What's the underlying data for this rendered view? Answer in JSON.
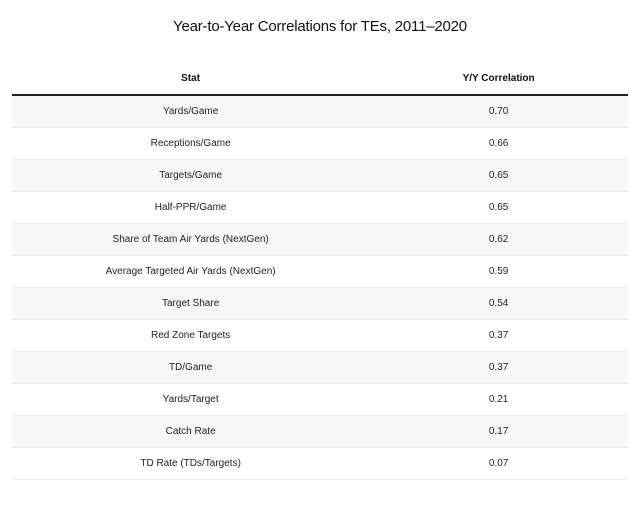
{
  "title": "Year-to-Year Correlations for TEs, 2011–2020",
  "table": {
    "type": "table",
    "background_color": "#ffffff",
    "stripe_color": "#f7f7f7",
    "header_border_color": "#222222",
    "row_border_color": "#eaeaea",
    "text_color": "#222222",
    "title_fontsize": 15,
    "header_fontsize": 10,
    "cell_fontsize": 10,
    "columns": [
      {
        "label": "Stat",
        "align": "center",
        "width_pct": 58
      },
      {
        "label": "Y/Y Correlation",
        "align": "center",
        "width_pct": 42
      }
    ],
    "rows": [
      {
        "stat": "Yards/Game",
        "corr": "0.70"
      },
      {
        "stat": "Receptions/Game",
        "corr": "0.66"
      },
      {
        "stat": "Targets/Game",
        "corr": "0.65"
      },
      {
        "stat": "Half-PPR/Game",
        "corr": "0.65"
      },
      {
        "stat": "Share of Team Air Yards (NextGen)",
        "corr": "0.62"
      },
      {
        "stat": "Average Targeted Air Yards (NextGen)",
        "corr": "0.59"
      },
      {
        "stat": "Target Share",
        "corr": "0.54"
      },
      {
        "stat": "Red Zone Targets",
        "corr": "0.37"
      },
      {
        "stat": "TD/Game",
        "corr": "0.37"
      },
      {
        "stat": "Yards/Target",
        "corr": "0.21"
      },
      {
        "stat": "Catch Rate",
        "corr": "0.17"
      },
      {
        "stat": "TD Rate (TDs/Targets)",
        "corr": "0.07"
      }
    ]
  }
}
